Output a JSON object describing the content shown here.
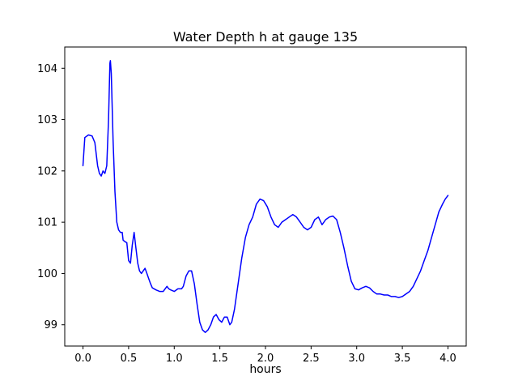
{
  "figure": {
    "title": "Water Depth h at gauge 135",
    "xlabel": "hours"
  },
  "chart_data": {
    "type": "line",
    "title": "Water Depth h at gauge 135",
    "xlabel": "hours",
    "ylabel": "",
    "legend": null,
    "grid": false,
    "line_color": "#0000ff",
    "axis_color": "#000000",
    "background_color": "#ffffff",
    "xlim": [
      -0.2,
      4.2
    ],
    "ylim": [
      98.585,
      104.415
    ],
    "x_ticks": [
      0.0,
      0.5,
      1.0,
      1.5,
      2.0,
      2.5,
      3.0,
      3.5,
      4.0
    ],
    "x_tick_labels": [
      "0.0",
      "0.5",
      "1.0",
      "1.5",
      "2.0",
      "2.5",
      "3.0",
      "3.5",
      "4.0"
    ],
    "y_ticks": [
      99,
      100,
      101,
      102,
      103,
      104
    ],
    "y_tick_labels": [
      "99",
      "100",
      "101",
      "102",
      "103",
      "104"
    ],
    "points": [
      [
        0.0,
        102.1
      ],
      [
        0.02,
        102.65
      ],
      [
        0.06,
        102.7
      ],
      [
        0.1,
        102.68
      ],
      [
        0.13,
        102.55
      ],
      [
        0.16,
        102.1
      ],
      [
        0.18,
        101.95
      ],
      [
        0.2,
        101.9
      ],
      [
        0.22,
        102.0
      ],
      [
        0.24,
        101.95
      ],
      [
        0.26,
        102.1
      ],
      [
        0.28,
        103.0
      ],
      [
        0.295,
        104.1
      ],
      [
        0.3,
        104.15
      ],
      [
        0.31,
        103.9
      ],
      [
        0.33,
        102.6
      ],
      [
        0.35,
        101.6
      ],
      [
        0.37,
        101.0
      ],
      [
        0.39,
        100.85
      ],
      [
        0.41,
        100.8
      ],
      [
        0.43,
        100.8
      ],
      [
        0.44,
        100.65
      ],
      [
        0.46,
        100.62
      ],
      [
        0.48,
        100.6
      ],
      [
        0.5,
        100.25
      ],
      [
        0.52,
        100.2
      ],
      [
        0.54,
        100.55
      ],
      [
        0.56,
        100.8
      ],
      [
        0.58,
        100.5
      ],
      [
        0.6,
        100.2
      ],
      [
        0.62,
        100.05
      ],
      [
        0.64,
        100.0
      ],
      [
        0.66,
        100.05
      ],
      [
        0.68,
        100.1
      ],
      [
        0.7,
        100.0
      ],
      [
        0.72,
        99.9
      ],
      [
        0.74,
        99.8
      ],
      [
        0.76,
        99.72
      ],
      [
        0.8,
        99.68
      ],
      [
        0.84,
        99.65
      ],
      [
        0.88,
        99.65
      ],
      [
        0.9,
        99.7
      ],
      [
        0.92,
        99.75
      ],
      [
        0.94,
        99.7
      ],
      [
        0.96,
        99.68
      ],
      [
        1.0,
        99.65
      ],
      [
        1.04,
        99.7
      ],
      [
        1.08,
        99.7
      ],
      [
        1.1,
        99.75
      ],
      [
        1.13,
        99.95
      ],
      [
        1.16,
        100.05
      ],
      [
        1.19,
        100.05
      ],
      [
        1.22,
        99.8
      ],
      [
        1.25,
        99.4
      ],
      [
        1.28,
        99.05
      ],
      [
        1.31,
        98.9
      ],
      [
        1.34,
        98.85
      ],
      [
        1.37,
        98.9
      ],
      [
        1.4,
        99.0
      ],
      [
        1.43,
        99.15
      ],
      [
        1.46,
        99.2
      ],
      [
        1.49,
        99.1
      ],
      [
        1.52,
        99.05
      ],
      [
        1.55,
        99.15
      ],
      [
        1.58,
        99.15
      ],
      [
        1.61,
        99.0
      ],
      [
        1.63,
        99.05
      ],
      [
        1.66,
        99.3
      ],
      [
        1.7,
        99.8
      ],
      [
        1.74,
        100.3
      ],
      [
        1.78,
        100.7
      ],
      [
        1.82,
        100.95
      ],
      [
        1.86,
        101.1
      ],
      [
        1.9,
        101.35
      ],
      [
        1.94,
        101.45
      ],
      [
        1.98,
        101.42
      ],
      [
        2.02,
        101.3
      ],
      [
        2.06,
        101.1
      ],
      [
        2.1,
        100.95
      ],
      [
        2.14,
        100.9
      ],
      [
        2.18,
        101.0
      ],
      [
        2.22,
        101.05
      ],
      [
        2.26,
        101.1
      ],
      [
        2.3,
        101.15
      ],
      [
        2.34,
        101.1
      ],
      [
        2.38,
        101.0
      ],
      [
        2.42,
        100.9
      ],
      [
        2.46,
        100.85
      ],
      [
        2.5,
        100.9
      ],
      [
        2.54,
        101.05
      ],
      [
        2.58,
        101.1
      ],
      [
        2.62,
        100.95
      ],
      [
        2.66,
        101.05
      ],
      [
        2.7,
        101.1
      ],
      [
        2.74,
        101.12
      ],
      [
        2.78,
        101.05
      ],
      [
        2.82,
        100.8
      ],
      [
        2.86,
        100.5
      ],
      [
        2.9,
        100.15
      ],
      [
        2.94,
        99.85
      ],
      [
        2.98,
        99.7
      ],
      [
        3.02,
        99.68
      ],
      [
        3.06,
        99.72
      ],
      [
        3.1,
        99.75
      ],
      [
        3.14,
        99.72
      ],
      [
        3.18,
        99.65
      ],
      [
        3.22,
        99.6
      ],
      [
        3.26,
        99.6
      ],
      [
        3.3,
        99.58
      ],
      [
        3.34,
        99.58
      ],
      [
        3.38,
        99.55
      ],
      [
        3.42,
        99.55
      ],
      [
        3.46,
        99.53
      ],
      [
        3.5,
        99.55
      ],
      [
        3.54,
        99.6
      ],
      [
        3.58,
        99.65
      ],
      [
        3.62,
        99.75
      ],
      [
        3.66,
        99.9
      ],
      [
        3.7,
        100.05
      ],
      [
        3.74,
        100.25
      ],
      [
        3.78,
        100.45
      ],
      [
        3.82,
        100.7
      ],
      [
        3.86,
        100.95
      ],
      [
        3.9,
        101.2
      ],
      [
        3.94,
        101.35
      ],
      [
        3.97,
        101.45
      ],
      [
        4.0,
        101.52
      ]
    ]
  }
}
